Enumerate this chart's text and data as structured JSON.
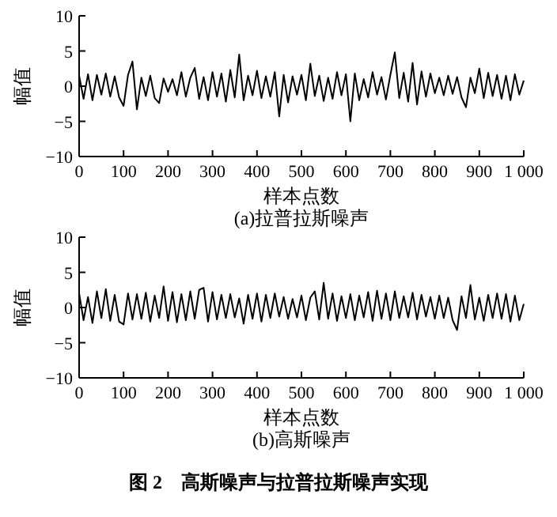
{
  "chart_data": [
    {
      "type": "line",
      "title": "(a)拉普拉斯噪声",
      "xlabel": "样本点数",
      "ylabel": "幅值",
      "xlim": [
        0,
        1000
      ],
      "ylim": [
        -10,
        10
      ],
      "xticks": [
        0,
        100,
        200,
        300,
        400,
        500,
        600,
        700,
        800,
        900,
        {
          "value": 1000,
          "label": "1 000"
        }
      ],
      "yticks": [
        -10,
        -5,
        0,
        5,
        10
      ],
      "x": [
        0,
        10,
        20,
        30,
        40,
        50,
        60,
        70,
        80,
        90,
        100,
        110,
        120,
        130,
        140,
        150,
        160,
        170,
        180,
        190,
        200,
        210,
        220,
        230,
        240,
        250,
        260,
        270,
        280,
        290,
        300,
        310,
        320,
        330,
        340,
        350,
        360,
        370,
        380,
        390,
        400,
        410,
        420,
        430,
        440,
        450,
        460,
        470,
        480,
        490,
        500,
        510,
        520,
        530,
        540,
        550,
        560,
        570,
        580,
        590,
        600,
        610,
        620,
        630,
        640,
        650,
        660,
        670,
        680,
        690,
        700,
        710,
        720,
        730,
        740,
        750,
        760,
        770,
        780,
        790,
        800,
        810,
        820,
        830,
        840,
        850,
        860,
        870,
        880,
        890,
        900,
        910,
        920,
        930,
        940,
        950,
        960,
        970,
        980,
        990,
        1000
      ],
      "series": [
        {
          "color": "#000000",
          "values": [
            1.5,
            -1.8,
            1.7,
            -2,
            1.6,
            -1.2,
            1.8,
            -1.5,
            1.4,
            -1.6,
            -2.8,
            1.6,
            3.5,
            -3.3,
            1.2,
            -1.4,
            1.5,
            -1.7,
            -2.4,
            1.1,
            -0.8,
            1.0,
            -1.3,
            2.0,
            -1.5,
            1.2,
            2.6,
            -1.8,
            1.3,
            -2.0,
            2.0,
            -1.5,
            1.8,
            -2.2,
            2.3,
            -1.6,
            4.5,
            -2.0,
            1.5,
            -1.3,
            2.2,
            -1.7,
            1.4,
            -1.5,
            2.0,
            -4.3,
            1.6,
            -2.3,
            1.4,
            -1.2,
            1.6,
            -2.0,
            3.2,
            -1.4,
            1.5,
            -2.1,
            1.2,
            -1.8,
            2.0,
            -1.3,
            1.7,
            -5.0,
            1.8,
            -2.0,
            1.0,
            -1.6,
            2.0,
            -1.2,
            1.3,
            -1.9,
            1.6,
            4.8,
            -1.7,
            1.9,
            -2.2,
            3.3,
            -2.6,
            2.1,
            -1.5,
            1.8,
            -1.0,
            1.2,
            -1.3,
            1.5,
            -1.1,
            1.3,
            -1.6,
            -3.0,
            1.2,
            -1.0,
            2.5,
            -1.7,
            1.9,
            -1.4,
            1.6,
            -1.8,
            1.5,
            -2.0,
            1.7,
            -1.2,
            0.8
          ]
        }
      ],
      "grid": false
    },
    {
      "type": "line",
      "title": "(b)高斯噪声",
      "xlabel": "样本点数",
      "ylabel": "幅值",
      "xlim": [
        0,
        1000
      ],
      "ylim": [
        -10,
        10
      ],
      "xticks": [
        0,
        100,
        200,
        300,
        400,
        500,
        600,
        700,
        800,
        900,
        {
          "value": 1000,
          "label": "1 000"
        }
      ],
      "yticks": [
        -10,
        -5,
        0,
        5,
        10
      ],
      "x": [
        0,
        10,
        20,
        30,
        40,
        50,
        60,
        70,
        80,
        90,
        100,
        110,
        120,
        130,
        140,
        150,
        160,
        170,
        180,
        190,
        200,
        210,
        220,
        230,
        240,
        250,
        260,
        270,
        280,
        290,
        300,
        310,
        320,
        330,
        340,
        350,
        360,
        370,
        380,
        390,
        400,
        410,
        420,
        430,
        440,
        450,
        460,
        470,
        480,
        490,
        500,
        510,
        520,
        530,
        540,
        550,
        560,
        570,
        580,
        590,
        600,
        610,
        620,
        630,
        640,
        650,
        660,
        670,
        680,
        690,
        700,
        710,
        720,
        730,
        740,
        750,
        760,
        770,
        780,
        790,
        800,
        810,
        820,
        830,
        840,
        850,
        860,
        870,
        880,
        890,
        900,
        910,
        920,
        930,
        940,
        950,
        960,
        970,
        980,
        990,
        1000
      ],
      "series": [
        {
          "color": "#000000",
          "values": [
            2.0,
            -1.8,
            1.5,
            -2.2,
            2.3,
            -1.5,
            2.6,
            -1.9,
            1.8,
            -2.0,
            -2.4,
            2.0,
            -1.7,
            1.9,
            -1.6,
            2.1,
            -2.0,
            1.7,
            -1.5,
            3.0,
            -1.9,
            2.2,
            -2.1,
            1.9,
            -1.8,
            2.3,
            -1.6,
            2.5,
            2.8,
            -2.0,
            2.2,
            -1.7,
            1.8,
            -1.5,
            1.9,
            -1.4,
            1.3,
            -2.3,
            1.8,
            -1.6,
            2.0,
            -2.0,
            1.8,
            -1.5,
            2.0,
            -1.3,
            1.5,
            -1.6,
            1.2,
            -1.4,
            1.7,
            -1.8,
            1.4,
            2.3,
            -1.7,
            3.5,
            -1.6,
            2.0,
            -1.9,
            1.6,
            -1.5,
            1.9,
            -1.8,
            1.7,
            -1.4,
            2.2,
            -1.9,
            2.4,
            -1.6,
            2.0,
            -1.8,
            2.3,
            -1.5,
            1.6,
            -1.4,
            2.1,
            -1.7,
            1.8,
            -1.3,
            1.5,
            -1.6,
            1.7,
            -1.5,
            1.4,
            -1.8,
            -3.2,
            1.6,
            -1.5,
            3.2,
            -1.7,
            1.4,
            -1.9,
            1.8,
            -1.5,
            2.0,
            -1.6,
            1.9,
            -2.0,
            1.7,
            -1.8,
            0.5
          ]
        }
      ],
      "grid": false,
      "annotations": [
        "图 2    高斯噪声与拉普拉斯噪声实现"
      ]
    }
  ]
}
